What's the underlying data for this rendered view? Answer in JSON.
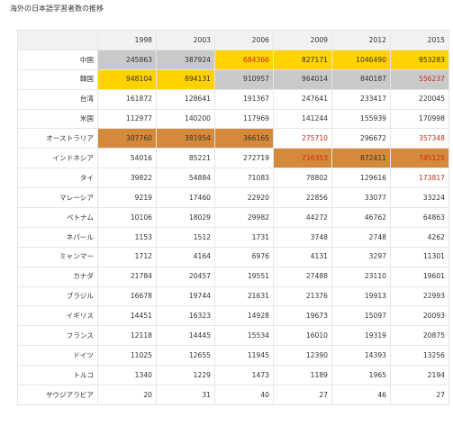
{
  "title": "海外の日本語学習者数の推移",
  "chart_data": {
    "type": "table",
    "years": [
      "1998",
      "2003",
      "2006",
      "2009",
      "2012",
      "2015"
    ],
    "rows": [
      {
        "country": "中国",
        "values": [
          245863,
          387924,
          684366,
          827171,
          1046490,
          953283
        ],
        "highlight": [
          "gray",
          "gray",
          "yellow",
          "yellow",
          "yellow",
          "yellow"
        ],
        "text_color": [
          "",
          "",
          "red",
          "",
          "",
          ""
        ]
      },
      {
        "country": "韓国",
        "values": [
          948104,
          894131,
          910957,
          964014,
          840187,
          556237
        ],
        "highlight": [
          "yellow",
          "yellow",
          "gray",
          "gray",
          "gray",
          "gray"
        ],
        "text_color": [
          "",
          "",
          "",
          "",
          "",
          "red"
        ]
      },
      {
        "country": "台湾",
        "values": [
          161872,
          128641,
          191367,
          247641,
          233417,
          220045
        ],
        "highlight": [
          "",
          "",
          "",
          "",
          "",
          ""
        ],
        "text_color": [
          "",
          "",
          "",
          "",
          "",
          ""
        ]
      },
      {
        "country": "米国",
        "values": [
          112977,
          140200,
          117969,
          141244,
          155939,
          170998
        ],
        "highlight": [
          "",
          "",
          "",
          "",
          "",
          ""
        ],
        "text_color": [
          "",
          "",
          "",
          "",
          "",
          ""
        ]
      },
      {
        "country": "オーストラリア",
        "values": [
          307760,
          381954,
          366165,
          275710,
          296672,
          357348
        ],
        "highlight": [
          "orange",
          "orange",
          "orange",
          "",
          "",
          ""
        ],
        "text_color": [
          "",
          "",
          "",
          "red",
          "",
          "red"
        ]
      },
      {
        "country": "インドネシア",
        "values": [
          54016,
          85221,
          272719,
          716353,
          872411,
          745125
        ],
        "highlight": [
          "",
          "",
          "",
          "orange",
          "orange",
          "orange"
        ],
        "text_color": [
          "",
          "",
          "",
          "red",
          "",
          "red"
        ]
      },
      {
        "country": "タイ",
        "values": [
          39822,
          54884,
          71083,
          78802,
          129616,
          173817
        ],
        "highlight": [
          "",
          "",
          "",
          "",
          "",
          ""
        ],
        "text_color": [
          "",
          "",
          "",
          "",
          "",
          "red"
        ]
      },
      {
        "country": "マレーシア",
        "values": [
          9219,
          17460,
          22920,
          22856,
          33077,
          33224
        ],
        "highlight": [
          "",
          "",
          "",
          "",
          "",
          ""
        ],
        "text_color": [
          "",
          "",
          "",
          "",
          "",
          ""
        ]
      },
      {
        "country": "ベトナム",
        "values": [
          10106,
          18029,
          29982,
          44272,
          46762,
          64863
        ],
        "highlight": [
          "",
          "",
          "",
          "",
          "",
          ""
        ],
        "text_color": [
          "",
          "",
          "",
          "",
          "",
          ""
        ]
      },
      {
        "country": "ネパール",
        "values": [
          1153,
          1512,
          1731,
          3748,
          2748,
          4262
        ],
        "highlight": [
          "",
          "",
          "",
          "",
          "",
          ""
        ],
        "text_color": [
          "",
          "",
          "",
          "",
          "",
          ""
        ]
      },
      {
        "country": "ミャンマー",
        "values": [
          1712,
          4164,
          6976,
          4131,
          3297,
          11301
        ],
        "highlight": [
          "",
          "",
          "",
          "",
          "",
          ""
        ],
        "text_color": [
          "",
          "",
          "",
          "",
          "",
          ""
        ]
      },
      {
        "country": "カナダ",
        "values": [
          21784,
          20457,
          19551,
          27488,
          23110,
          19601
        ],
        "highlight": [
          "",
          "",
          "",
          "",
          "",
          ""
        ],
        "text_color": [
          "",
          "",
          "",
          "",
          "",
          ""
        ]
      },
      {
        "country": "ブラジル",
        "values": [
          16678,
          19744,
          21631,
          21376,
          19913,
          22993
        ],
        "highlight": [
          "",
          "",
          "",
          "",
          "",
          ""
        ],
        "text_color": [
          "",
          "",
          "",
          "",
          "",
          ""
        ]
      },
      {
        "country": "イギリス",
        "values": [
          14451,
          16323,
          14928,
          19673,
          15097,
          20093
        ],
        "highlight": [
          "",
          "",
          "",
          "",
          "",
          ""
        ],
        "text_color": [
          "",
          "",
          "",
          "",
          "",
          ""
        ]
      },
      {
        "country": "フランス",
        "values": [
          12118,
          14445,
          15534,
          16010,
          19319,
          20875
        ],
        "highlight": [
          "",
          "",
          "",
          "",
          "",
          ""
        ],
        "text_color": [
          "",
          "",
          "",
          "",
          "",
          ""
        ]
      },
      {
        "country": "ドイツ",
        "values": [
          11025,
          12655,
          11945,
          12390,
          14393,
          13256
        ],
        "highlight": [
          "",
          "",
          "",
          "",
          "",
          ""
        ],
        "text_color": [
          "",
          "",
          "",
          "",
          "",
          ""
        ]
      },
      {
        "country": "トルコ",
        "values": [
          1340,
          1229,
          1473,
          1189,
          1965,
          2194
        ],
        "highlight": [
          "",
          "",
          "",
          "",
          "",
          ""
        ],
        "text_color": [
          "",
          "",
          "",
          "",
          "",
          ""
        ]
      },
      {
        "country": "サウジアラビア",
        "values": [
          20,
          31,
          40,
          27,
          46,
          27
        ],
        "highlight": [
          "",
          "",
          "",
          "",
          "",
          ""
        ],
        "text_color": [
          "",
          "",
          "",
          "",
          "",
          ""
        ]
      }
    ]
  },
  "colors": {
    "gray": "#c9c9c9",
    "yellow": "#ffd200",
    "orange": "#d48a3a",
    "red_text": "#cc2a1a"
  }
}
